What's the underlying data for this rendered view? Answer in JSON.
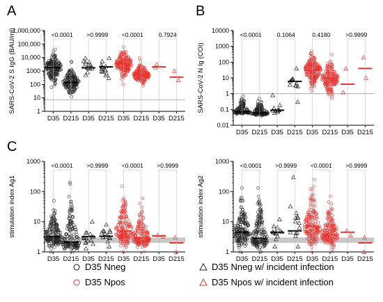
{
  "colors": {
    "nneg": "#222222",
    "npos": "#e8332f",
    "median_nneg": "#000000",
    "median_npos": "#e8332f",
    "threshold": "#9a9a9a",
    "band": "#c8c8c8",
    "pline": "#b4b4b4"
  },
  "legend": {
    "items": [
      {
        "label": "D35 Nneg",
        "marker": "circle",
        "group": "nneg"
      },
      {
        "label": "D35 Nneg w/ incident infection",
        "marker": "triangle",
        "group": "nneg"
      },
      {
        "label": "D35 Npos",
        "marker": "circle",
        "group": "npos"
      },
      {
        "label": "D35 Npos w/ incident infection",
        "marker": "triangle",
        "group": "npos"
      }
    ]
  },
  "chart_data": [
    {
      "panel": "A",
      "type": "scatter",
      "ylabel": "SARS-CoV-2 S IgG (BAU/ml)",
      "yscale": "log",
      "ylim": [
        1,
        1000000
      ],
      "yticks": [
        1,
        10,
        100,
        1000,
        10000,
        100000,
        1000000
      ],
      "yticklabels": [
        "1",
        "10",
        "100",
        "1000",
        "10,000",
        "100,000",
        "1,000,000"
      ],
      "threshold": 7,
      "categories": [
        "D35",
        "D215",
        "D35",
        "D215",
        "D35",
        "D215",
        "D35",
        "D215"
      ],
      "groups": [
        {
          "marker": "circle",
          "group": "nneg",
          "median": 1800,
          "spread": [
            60,
            40000
          ],
          "n": 170
        },
        {
          "marker": "circle",
          "group": "nneg",
          "median": 140,
          "spread": [
            12,
            5000
          ],
          "n": 160
        },
        {
          "marker": "triangle",
          "group": "nneg",
          "median": 1700,
          "spread": [
            500,
            9000
          ],
          "n": 14
        },
        {
          "marker": "triangle",
          "group": "nneg",
          "median": 2000,
          "spread": [
            300,
            9000
          ],
          "n": 14
        },
        {
          "marker": "circle",
          "group": "npos",
          "median": 3400,
          "spread": [
            100,
            60000
          ],
          "n": 170
        },
        {
          "marker": "circle",
          "group": "npos",
          "median": 500,
          "spread": [
            80,
            9000
          ],
          "n": 160
        },
        {
          "marker": "triangle",
          "group": "npos",
          "median": 2000,
          "spread": [
            1800,
            3000
          ],
          "n": 2
        },
        {
          "marker": "triangle",
          "group": "npos",
          "median": 350,
          "spread": [
            200,
            1000
          ],
          "n": 2
        }
      ],
      "pvalues": [
        "<0.0001",
        ">0.9999",
        "<0.0001",
        "0.7924"
      ]
    },
    {
      "panel": "B",
      "type": "scatter",
      "ylabel": "SARS-CoV-2 N Ig (COI)",
      "yscale": "log",
      "ylim": [
        0.01,
        10000
      ],
      "yticks": [
        0.01,
        0.1,
        1,
        10,
        100,
        1000,
        10000
      ],
      "yticklabels": [
        "0.01",
        "0.1",
        "1",
        "10",
        "100",
        "1000",
        "10000"
      ],
      "threshold": 1,
      "categories": [
        "D35",
        "D215",
        "D35",
        "D215",
        "D35",
        "D215",
        "D35",
        "D215"
      ],
      "groups": [
        {
          "marker": "circle",
          "group": "nneg",
          "median": 0.07,
          "spread": [
            0.05,
            0.7
          ],
          "n": 150
        },
        {
          "marker": "circle",
          "group": "nneg",
          "median": 0.06,
          "spread": [
            0.04,
            0.5
          ],
          "n": 150
        },
        {
          "marker": "triangle",
          "group": "nneg",
          "median": 0.09,
          "spread": [
            0.06,
            0.8
          ],
          "n": 12
        },
        {
          "marker": "triangle",
          "group": "nneg",
          "median": 6,
          "spread": [
            0.3,
            40
          ],
          "n": 12
        },
        {
          "marker": "circle",
          "group": "npos",
          "median": 30,
          "spread": [
            1.5,
            500
          ],
          "n": 180
        },
        {
          "marker": "circle",
          "group": "npos",
          "median": 10,
          "spread": [
            0.5,
            300
          ],
          "n": 170
        },
        {
          "marker": "triangle",
          "group": "npos",
          "median": 4,
          "spread": [
            1.2,
            40
          ],
          "n": 2
        },
        {
          "marker": "triangle",
          "group": "npos",
          "median": 40,
          "spread": [
            10,
            200
          ],
          "n": 2
        }
      ],
      "pvalues": [
        "<0.0001",
        "0.1064",
        "0.4180",
        ">0.9999"
      ]
    },
    {
      "panel": "C",
      "type": "scatter",
      "ylabel": "stimulation index Ag1",
      "yscale": "log",
      "ylim": [
        1,
        1000
      ],
      "yticks": [
        1,
        10,
        100,
        1000
      ],
      "yticklabels": [
        "1",
        "10",
        "100",
        "1000"
      ],
      "band": [
        2,
        3
      ],
      "categories": [
        "D35",
        "D215",
        "D35",
        "D215",
        "D35",
        "D215",
        "D35",
        "D215"
      ],
      "groups": [
        {
          "marker": "circle",
          "group": "nneg",
          "median": 3.2,
          "spread": [
            1,
            50
          ],
          "n": 170
        },
        {
          "marker": "circle",
          "group": "nneg",
          "median": 2.1,
          "spread": [
            1,
            200
          ],
          "n": 160
        },
        {
          "marker": "triangle",
          "group": "nneg",
          "median": 3.2,
          "spread": [
            1.3,
            10
          ],
          "n": 14
        },
        {
          "marker": "triangle",
          "group": "nneg",
          "median": 3.3,
          "spread": [
            1.5,
            8
          ],
          "n": 14
        },
        {
          "marker": "circle",
          "group": "npos",
          "median": 5,
          "spread": [
            1,
            150
          ],
          "n": 170
        },
        {
          "marker": "circle",
          "group": "npos",
          "median": 3,
          "spread": [
            1,
            60
          ],
          "n": 160
        },
        {
          "marker": "triangle",
          "group": "npos",
          "median": 3.4,
          "spread": [
            3.2,
            3.6
          ],
          "n": 2
        },
        {
          "marker": "triangle",
          "group": "npos",
          "median": 2,
          "spread": [
            1,
            3
          ],
          "n": 2
        }
      ],
      "pvalues": [
        "<0.0001",
        ">0.9999",
        "<0.0001",
        ">0.9999"
      ]
    },
    {
      "panel": "",
      "type": "scatter",
      "ylabel": "stimulation index Ag2",
      "yscale": "log",
      "ylim": [
        1,
        1000
      ],
      "yticks": [
        1,
        10,
        100,
        1000
      ],
      "yticklabels": [
        "1",
        "10",
        "100",
        "1000"
      ],
      "band": [
        2,
        3
      ],
      "categories": [
        "D35",
        "D215",
        "D35",
        "D215",
        "D35",
        "D215",
        "D35",
        "D215"
      ],
      "groups": [
        {
          "marker": "circle",
          "group": "nneg",
          "median": 4.5,
          "spread": [
            1,
            130
          ],
          "n": 170
        },
        {
          "marker": "circle",
          "group": "nneg",
          "median": 2.8,
          "spread": [
            1,
            130
          ],
          "n": 160
        },
        {
          "marker": "triangle",
          "group": "nneg",
          "median": 4.5,
          "spread": [
            1.5,
            12
          ],
          "n": 14
        },
        {
          "marker": "triangle",
          "group": "nneg",
          "median": 5,
          "spread": [
            1.5,
            300
          ],
          "n": 14
        },
        {
          "marker": "circle",
          "group": "npos",
          "median": 7,
          "spread": [
            1,
            250
          ],
          "n": 170
        },
        {
          "marker": "circle",
          "group": "npos",
          "median": 3.7,
          "spread": [
            1,
            70
          ],
          "n": 160
        },
        {
          "marker": "triangle",
          "group": "npos",
          "median": 4.5,
          "spread": [
            3.5,
            5
          ],
          "n": 2
        },
        {
          "marker": "triangle",
          "group": "npos",
          "median": 2,
          "spread": [
            1,
            3
          ],
          "n": 2
        }
      ],
      "pvalues": [
        "<0.0001",
        ">0.9999",
        "<0.0001",
        ">0.9999"
      ]
    }
  ]
}
